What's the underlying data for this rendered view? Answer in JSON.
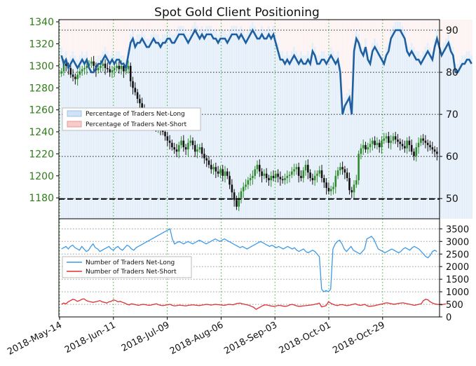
{
  "chart_data": [
    {
      "type": "candlestick",
      "title": "Spot Gold Client Positioning",
      "left_axis": {
        "ticks": [
          1180,
          1200,
          1220,
          1240,
          1260,
          1280,
          1300,
          1320,
          1340
        ],
        "ylim": [
          1161,
          1342
        ],
        "tick_color": "#2e7d18"
      },
      "right_axis": {
        "ticks": [
          50,
          60,
          70,
          80,
          90
        ],
        "ylim": [
          45.2,
          92.5
        ]
      },
      "x_ticks": [
        "2018-May-14",
        "2018-Jun-11",
        "2018-Jul-09",
        "2018-Aug-06",
        "2018-Sep-03",
        "2018-Oct-01",
        "2018-Oct-29"
      ],
      "price_series": {
        "name": "Spot Gold",
        "up_color": "#2e8b2e",
        "down_color": "#111111",
        "close": [
          1295,
          1302,
          1300,
          1298,
          1292,
          1290,
          1288,
          1292,
          1295,
          1297,
          1298,
          1300,
          1302,
          1304,
          1300,
          1296,
          1298,
          1300,
          1302,
          1298,
          1297,
          1294,
          1296,
          1298,
          1300,
          1297,
          1300,
          1295,
          1297,
          1300,
          1286,
          1280,
          1276,
          1270,
          1266,
          1262,
          1258,
          1254,
          1250,
          1252,
          1248,
          1244,
          1246,
          1243,
          1240,
          1236,
          1232,
          1230,
          1226,
          1224,
          1222,
          1228,
          1232,
          1226,
          1224,
          1230,
          1232,
          1228,
          1222,
          1224,
          1226,
          1220,
          1216,
          1214,
          1210,
          1206,
          1208,
          1204,
          1202,
          1206,
          1200,
          1204,
          1200,
          1192,
          1185,
          1178,
          1172,
          1180,
          1186,
          1190,
          1192,
          1196,
          1198,
          1200,
          1206,
          1210,
          1204,
          1200,
          1202,
          1198,
          1196,
          1200,
          1198,
          1202,
          1199,
          1197,
          1196,
          1198,
          1200,
          1201,
          1204,
          1206,
          1208,
          1200,
          1198,
          1205,
          1210,
          1203,
          1198,
          1196,
          1200,
          1202,
          1205,
          1198,
          1194,
          1189,
          1186,
          1188,
          1190,
          1200,
          1205,
          1208,
          1206,
          1203,
          1198,
          1187,
          1185,
          1192,
          1196,
          1220,
          1225,
          1228,
          1224,
          1226,
          1229,
          1232,
          1228,
          1230,
          1226,
          1232,
          1234,
          1236,
          1230,
          1232,
          1236,
          1233,
          1231,
          1229,
          1227,
          1225,
          1232,
          1228,
          1222,
          1218,
          1226,
          1230,
          1234,
          1232,
          1230,
          1228,
          1226,
          1224,
          1222,
          1220
        ],
        "note": "values approximated from the candlestick chart"
      },
      "pct_long_series": {
        "name": "Percentage of Traders Net-Long",
        "color": "#1f5fa0",
        "values": [
          84,
          82,
          83,
          81,
          82,
          83,
          82,
          81,
          82,
          83,
          82,
          83,
          81,
          80,
          80,
          81,
          82,
          82,
          83,
          84,
          83,
          82,
          83,
          82,
          83,
          83,
          82,
          82,
          81,
          84,
          87,
          88,
          86,
          87,
          87,
          88,
          87,
          86,
          86,
          87,
          88,
          87,
          87,
          86,
          87,
          87,
          88,
          88,
          87,
          87,
          88,
          89,
          89,
          89,
          88,
          87,
          88,
          89,
          90,
          89,
          88,
          89,
          88,
          89,
          89,
          89,
          88,
          88,
          87,
          88,
          88,
          88,
          87,
          88,
          89,
          89,
          89,
          88,
          89,
          88,
          87,
          88,
          89,
          90,
          89,
          88,
          88,
          89,
          88,
          88,
          89,
          88,
          89,
          87,
          85,
          83,
          83,
          82,
          83,
          82,
          83,
          84,
          83,
          82,
          83,
          82,
          82,
          83,
          82,
          85,
          84,
          82,
          82,
          83,
          83,
          82,
          83,
          84,
          83,
          82,
          83,
          80,
          70,
          72,
          73,
          74,
          70,
          85,
          88,
          87,
          85,
          84,
          86,
          83,
          82,
          85,
          86,
          85,
          84,
          83,
          82,
          84,
          85,
          88,
          89,
          90,
          90,
          90,
          89,
          88,
          85,
          84,
          85,
          84,
          83,
          83,
          82,
          83,
          84,
          85,
          84,
          83,
          86,
          88,
          86,
          84,
          85,
          86,
          87,
          85,
          84,
          80,
          80,
          81,
          82,
          82,
          83,
          83,
          82
        ]
      },
      "reference_lines_pct": [
        50,
        60,
        70,
        80,
        90
      ],
      "legend": [
        "Percentage of Traders Net-Long",
        "Percentage of Traders Net-Short"
      ],
      "legend_colors": {
        "long": "#a8c8f0",
        "short": "#f4a7a7"
      }
    },
    {
      "type": "line",
      "y_ticks": [
        0,
        500,
        1000,
        1500,
        2000,
        2500,
        3000,
        3500
      ],
      "ylim": [
        0,
        3900
      ],
      "series": [
        {
          "name": "Number of Traders Net-Long",
          "color": "#3d9ae8",
          "values": [
            2700,
            2750,
            2800,
            2700,
            2800,
            2850,
            2750,
            2700,
            2650,
            2800,
            2700,
            2600,
            2650,
            2800,
            2900,
            2750,
            2700,
            2600,
            2650,
            2700,
            2750,
            2800,
            2700,
            2650,
            2750,
            2800,
            2700,
            2650,
            2750,
            2850,
            2800,
            2700,
            2650,
            2750,
            2800,
            2850,
            2900,
            2950,
            3000,
            3050,
            3100,
            3150,
            3200,
            3250,
            3300,
            3350,
            3400,
            3450,
            3500,
            3100,
            2900,
            2950,
            3000,
            2950,
            2900,
            2950,
            3000,
            2950,
            2900,
            2950,
            3000,
            3050,
            3000,
            2950,
            2900,
            2950,
            3000,
            3050,
            3100,
            3050,
            3000,
            3050,
            3100,
            3050,
            3000,
            2950,
            2900,
            2850,
            2800,
            2750,
            2800,
            2750,
            2700,
            2750,
            2800,
            2850,
            2900,
            2950,
            3000,
            2950,
            2900,
            2850,
            2800,
            2850,
            2800,
            2750,
            2800,
            2750,
            2700,
            2750,
            2800,
            2750,
            2700,
            2750,
            2650,
            2600,
            2650,
            2700,
            2600,
            2550,
            2600,
            2650,
            2600,
            2500,
            2400,
            1100,
            1000,
            1050,
            1000,
            1100,
            2700,
            2900,
            3000,
            3050,
            2900,
            2700,
            2600,
            2700,
            2800,
            2650,
            2600,
            2550,
            2500,
            2600,
            2700,
            3100,
            3150,
            3200,
            3100,
            2900,
            2700,
            2650,
            2600,
            2550,
            2600,
            2650,
            2700,
            2650,
            2600,
            2550,
            2600,
            2700,
            2750,
            2700,
            2650,
            2750,
            2800,
            2750,
            2700,
            2600,
            2500,
            2400,
            2350,
            2450,
            2600,
            2650,
            2600
          ]
        },
        {
          "name": "Number of Traders Net-Short",
          "color": "#e03030",
          "values": [
            500,
            550,
            520,
            600,
            650,
            700,
            680,
            620,
            650,
            700,
            720,
            650,
            620,
            600,
            580,
            600,
            620,
            650,
            600,
            580,
            550,
            600,
            620,
            680,
            650,
            600,
            620,
            580,
            550,
            500,
            480,
            520,
            500,
            480,
            460,
            480,
            500,
            490,
            470,
            460,
            480,
            500,
            520,
            480,
            460,
            450,
            470,
            480,
            500,
            460,
            440,
            450,
            470,
            460,
            450,
            440,
            460,
            470,
            480,
            470,
            460,
            450,
            470,
            480,
            500,
            490,
            470,
            480,
            500,
            490,
            480,
            470,
            460,
            480,
            500,
            490,
            480,
            520,
            540,
            550,
            520,
            500,
            480,
            460,
            420,
            380,
            300,
            350,
            400,
            450,
            480,
            470,
            450,
            430,
            420,
            440,
            460,
            450,
            430,
            420,
            440,
            480,
            500,
            470,
            440,
            420,
            430,
            440,
            450,
            460,
            470,
            480,
            500,
            520,
            550,
            400,
            420,
            450,
            600,
            550,
            500,
            470,
            450,
            480,
            490,
            470,
            450,
            460,
            480,
            500,
            520,
            480,
            460,
            470,
            500,
            450,
            420,
            430,
            440,
            460,
            480,
            500,
            520,
            550,
            560,
            540,
            520,
            500,
            520,
            540,
            550,
            560,
            540,
            520,
            500,
            480,
            460,
            480,
            500,
            520,
            650,
            700,
            680,
            600,
            550,
            520,
            500,
            490,
            480,
            500,
            520
          ]
        }
      ],
      "legend": [
        "Number of Traders Net-Long",
        "Number of Traders Net-Short"
      ]
    }
  ]
}
